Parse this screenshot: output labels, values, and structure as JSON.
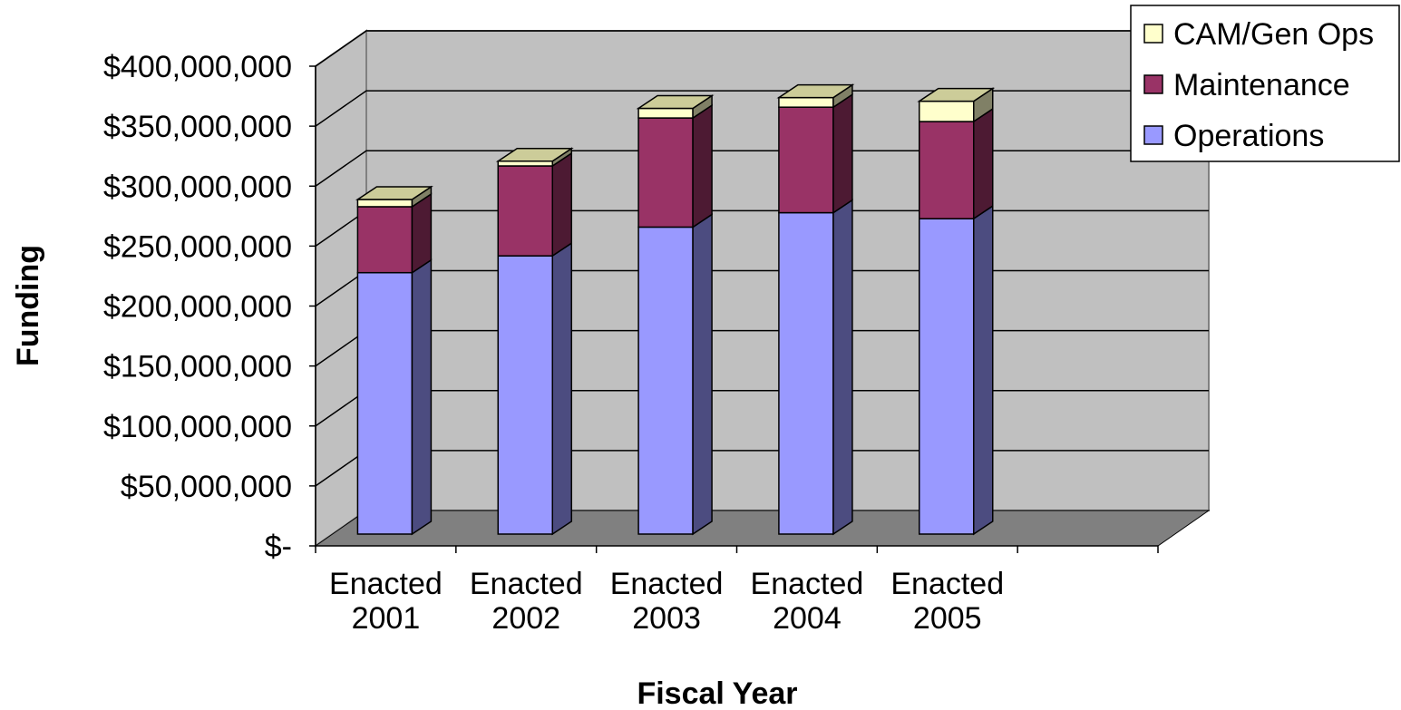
{
  "chart_data": {
    "type": "bar",
    "stacked": true,
    "three_d": true,
    "title": "",
    "xlabel": "Fiscal Year",
    "ylabel": "Funding",
    "ylim": [
      0,
      400000000
    ],
    "y_tick_values": [
      0,
      50000000,
      100000000,
      150000000,
      200000000,
      250000000,
      300000000,
      350000000,
      400000000
    ],
    "y_tick_labels": [
      "$-",
      "$50,000,000",
      "$100,000,000",
      "$150,000,000",
      "$200,000,000",
      "$250,000,000",
      "$300,000,000",
      "$350,000,000",
      "$400,000,000"
    ],
    "categories": [
      [
        "Enacted",
        "2001"
      ],
      [
        "Enacted",
        "2002"
      ],
      [
        "Enacted",
        "2003"
      ],
      [
        "Enacted",
        "2004"
      ],
      [
        "Enacted",
        "2005"
      ]
    ],
    "series": [
      {
        "name": "Operations",
        "color": "#9999FF",
        "side_color": "#4C4C80",
        "values": [
          218000000,
          232000000,
          256000000,
          268000000,
          263000000
        ]
      },
      {
        "name": "Maintenance",
        "color": "#993366",
        "side_color": "#4D1A33",
        "values": [
          55000000,
          75000000,
          91000000,
          88000000,
          81000000
        ]
      },
      {
        "name": "CAM/Gen Ops",
        "color": "#FFFFCC",
        "side_color": "#808066",
        "values": [
          6000000,
          4000000,
          8000000,
          8000000,
          17000000
        ]
      }
    ],
    "legend_order": [
      "CAM/Gen Ops",
      "Maintenance",
      "Operations"
    ],
    "legend_position": "top-right",
    "grid": true,
    "wall_color": "#C0C0C0",
    "floor_color": "#808080"
  }
}
